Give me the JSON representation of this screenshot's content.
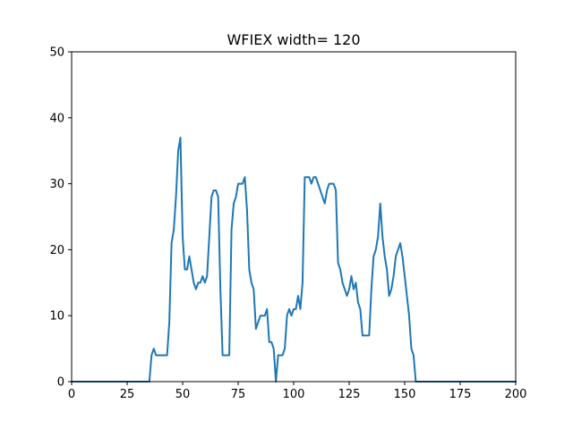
{
  "chart_data": {
    "type": "line",
    "title": "WFIEX width= 120",
    "xlabel": "",
    "ylabel": "",
    "xlim": [
      0,
      200
    ],
    "ylim": [
      0,
      50
    ],
    "xticks": [
      0,
      25,
      50,
      75,
      100,
      125,
      150,
      175,
      200
    ],
    "yticks": [
      0,
      10,
      20,
      30,
      40,
      50
    ],
    "grid": false,
    "series": [
      {
        "color": "#1f77b4",
        "points": [
          [
            0,
            0
          ],
          [
            35,
            0
          ],
          [
            36,
            4
          ],
          [
            37,
            5
          ],
          [
            38,
            4
          ],
          [
            39,
            4
          ],
          [
            40,
            4
          ],
          [
            41,
            4
          ],
          [
            42,
            4
          ],
          [
            43,
            4
          ],
          [
            44,
            9
          ],
          [
            45,
            21
          ],
          [
            46,
            23
          ],
          [
            47,
            28
          ],
          [
            48,
            35
          ],
          [
            49,
            37
          ],
          [
            50,
            22
          ],
          [
            51,
            17
          ],
          [
            52,
            17
          ],
          [
            53,
            19
          ],
          [
            54,
            17
          ],
          [
            55,
            15
          ],
          [
            56,
            14
          ],
          [
            57,
            15
          ],
          [
            58,
            15
          ],
          [
            59,
            16
          ],
          [
            60,
            15
          ],
          [
            61,
            16
          ],
          [
            62,
            22
          ],
          [
            63,
            28
          ],
          [
            64,
            29
          ],
          [
            65,
            29
          ],
          [
            66,
            28
          ],
          [
            67,
            14
          ],
          [
            68,
            4
          ],
          [
            69,
            4
          ],
          [
            70,
            4
          ],
          [
            71,
            4
          ],
          [
            72,
            23
          ],
          [
            73,
            27
          ],
          [
            74,
            28
          ],
          [
            75,
            30
          ],
          [
            76,
            30
          ],
          [
            77,
            30
          ],
          [
            78,
            31
          ],
          [
            79,
            26
          ],
          [
            80,
            17
          ],
          [
            81,
            15
          ],
          [
            82,
            14
          ],
          [
            83,
            8
          ],
          [
            84,
            9
          ],
          [
            85,
            10
          ],
          [
            86,
            10
          ],
          [
            87,
            10
          ],
          [
            88,
            11
          ],
          [
            89,
            6
          ],
          [
            90,
            6
          ],
          [
            91,
            5
          ],
          [
            92,
            0
          ],
          [
            93,
            4
          ],
          [
            94,
            4
          ],
          [
            95,
            4
          ],
          [
            96,
            5
          ],
          [
            97,
            10
          ],
          [
            98,
            11
          ],
          [
            99,
            10
          ],
          [
            100,
            11
          ],
          [
            101,
            11
          ],
          [
            102,
            13
          ],
          [
            103,
            11
          ],
          [
            104,
            15
          ],
          [
            105,
            31
          ],
          [
            106,
            31
          ],
          [
            107,
            31
          ],
          [
            108,
            30
          ],
          [
            109,
            31
          ],
          [
            110,
            31
          ],
          [
            111,
            30
          ],
          [
            112,
            29
          ],
          [
            113,
            28
          ],
          [
            114,
            27
          ],
          [
            115,
            29
          ],
          [
            116,
            30
          ],
          [
            117,
            30
          ],
          [
            118,
            30
          ],
          [
            119,
            29
          ],
          [
            120,
            18
          ],
          [
            121,
            17
          ],
          [
            122,
            15
          ],
          [
            123,
            14
          ],
          [
            124,
            13
          ],
          [
            125,
            14
          ],
          [
            126,
            16
          ],
          [
            127,
            14
          ],
          [
            128,
            15
          ],
          [
            129,
            12
          ],
          [
            130,
            11
          ],
          [
            131,
            7
          ],
          [
            132,
            7
          ],
          [
            133,
            7
          ],
          [
            134,
            7
          ],
          [
            135,
            14
          ],
          [
            136,
            19
          ],
          [
            137,
            20
          ],
          [
            138,
            22
          ],
          [
            139,
            27
          ],
          [
            140,
            22
          ],
          [
            141,
            19
          ],
          [
            142,
            17
          ],
          [
            143,
            13
          ],
          [
            144,
            14
          ],
          [
            145,
            16
          ],
          [
            146,
            19
          ],
          [
            147,
            20
          ],
          [
            148,
            21
          ],
          [
            149,
            19
          ],
          [
            150,
            16
          ],
          [
            151,
            13
          ],
          [
            152,
            10
          ],
          [
            153,
            5
          ],
          [
            154,
            4
          ],
          [
            155,
            0
          ],
          [
            200,
            0
          ]
        ]
      }
    ]
  }
}
